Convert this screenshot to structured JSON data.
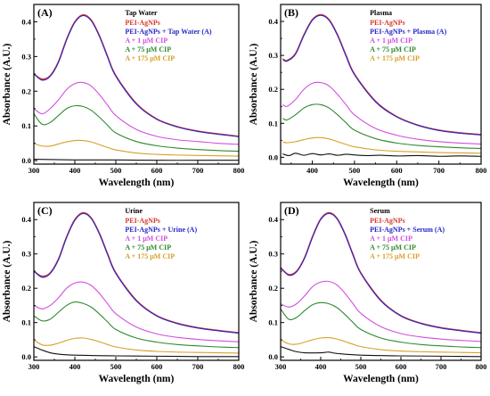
{
  "figure": {
    "background": "#ffffff"
  },
  "chart_data": [
    {
      "type": "line",
      "panel_label": "(A)",
      "title": "Tap Water",
      "xlabel": "Wavelength (nm)",
      "ylabel": "Absorbance (A.U.)",
      "xlim": [
        300,
        800
      ],
      "ylim": [
        -0.01,
        0.45
      ],
      "xticks": [
        300,
        400,
        500,
        600,
        700,
        800
      ],
      "yticks": [
        0.0,
        0.1,
        0.2,
        0.3,
        0.4
      ],
      "legend_position": "top-right",
      "series": [
        {
          "name": "PEI-AgNPs",
          "color": "#d93b2b",
          "x": [
            300,
            320,
            340,
            360,
            380,
            400,
            420,
            440,
            460,
            480,
            500,
            550,
            600,
            650,
            700,
            750,
            800
          ],
          "y": [
            0.25,
            0.235,
            0.245,
            0.285,
            0.35,
            0.4,
            0.42,
            0.405,
            0.36,
            0.3,
            0.245,
            0.165,
            0.12,
            0.098,
            0.085,
            0.077,
            0.07
          ]
        },
        {
          "name": "PEI-AgNPs + Tap Water (A)",
          "color": "#2828c8",
          "x": [
            300,
            320,
            340,
            360,
            380,
            400,
            420,
            440,
            460,
            480,
            500,
            550,
            600,
            650,
            700,
            750,
            800
          ],
          "y": [
            0.25,
            0.232,
            0.243,
            0.283,
            0.348,
            0.398,
            0.418,
            0.403,
            0.358,
            0.298,
            0.243,
            0.163,
            0.119,
            0.097,
            0.084,
            0.076,
            0.069
          ]
        },
        {
          "name": "A + 1 μM CIP",
          "color": "#d24fe0",
          "x": [
            300,
            320,
            340,
            360,
            380,
            400,
            420,
            440,
            460,
            480,
            500,
            550,
            600,
            650,
            700,
            750,
            800
          ],
          "y": [
            0.15,
            0.135,
            0.15,
            0.175,
            0.205,
            0.222,
            0.225,
            0.215,
            0.19,
            0.16,
            0.13,
            0.09,
            0.07,
            0.06,
            0.055,
            0.05,
            0.047
          ]
        },
        {
          "name": "A + 75 μM CIP",
          "color": "#2f8a2f",
          "x": [
            300,
            320,
            340,
            360,
            380,
            400,
            420,
            440,
            460,
            480,
            500,
            550,
            600,
            650,
            700,
            750,
            800
          ],
          "y": [
            0.135,
            0.105,
            0.11,
            0.13,
            0.15,
            0.158,
            0.156,
            0.145,
            0.125,
            0.102,
            0.08,
            0.055,
            0.043,
            0.036,
            0.032,
            0.029,
            0.027
          ]
        },
        {
          "name": "A + 175 μM CIP",
          "color": "#d6a12a",
          "x": [
            300,
            320,
            340,
            360,
            380,
            400,
            420,
            440,
            460,
            480,
            500,
            550,
            600,
            650,
            700,
            750,
            800
          ],
          "y": [
            0.05,
            0.042,
            0.042,
            0.048,
            0.054,
            0.058,
            0.058,
            0.054,
            0.046,
            0.038,
            0.031,
            0.022,
            0.018,
            0.016,
            0.015,
            0.014,
            0.013
          ]
        },
        {
          "name": "",
          "color": "#111111",
          "x": [
            300,
            350,
            400,
            500,
            600,
            700,
            800
          ],
          "y": [
            0.004,
            0.003,
            0.002,
            0.002,
            0.001,
            0.001,
            0.001
          ]
        }
      ]
    },
    {
      "type": "line",
      "panel_label": "(B)",
      "title": "Plasma",
      "xlabel": "Wavelength (nm)",
      "ylabel": "Absorbance (A.U.)",
      "xlim": [
        325,
        800
      ],
      "ylim": [
        -0.02,
        0.45
      ],
      "xticks": [
        400,
        500,
        600,
        700,
        800
      ],
      "yticks": [
        0.0,
        0.1,
        0.2,
        0.3,
        0.4
      ],
      "legend_position": "top-right",
      "series": [
        {
          "name": "PEI-AgNPs",
          "color": "#d93b2b",
          "x": [
            330,
            340,
            360,
            380,
            400,
            420,
            440,
            460,
            480,
            500,
            550,
            600,
            650,
            700,
            750,
            800
          ],
          "y": [
            0.29,
            0.285,
            0.305,
            0.36,
            0.405,
            0.42,
            0.405,
            0.36,
            0.3,
            0.245,
            0.165,
            0.12,
            0.095,
            0.08,
            0.072,
            0.067
          ]
        },
        {
          "name": "PEI-AgNPs + Plasma (A)",
          "color": "#2828c8",
          "x": [
            330,
            340,
            360,
            380,
            400,
            420,
            440,
            460,
            480,
            500,
            550,
            600,
            650,
            700,
            750,
            800
          ],
          "y": [
            0.288,
            0.283,
            0.303,
            0.358,
            0.403,
            0.418,
            0.403,
            0.358,
            0.298,
            0.243,
            0.163,
            0.119,
            0.094,
            0.079,
            0.071,
            0.066
          ]
        },
        {
          "name": "A + 1 μM CIP",
          "color": "#d24fe0",
          "x": [
            330,
            340,
            360,
            380,
            400,
            420,
            440,
            460,
            480,
            500,
            550,
            600,
            650,
            700,
            750,
            800
          ],
          "y": [
            0.155,
            0.15,
            0.17,
            0.2,
            0.218,
            0.22,
            0.21,
            0.185,
            0.155,
            0.125,
            0.085,
            0.065,
            0.053,
            0.046,
            0.042,
            0.039
          ]
        },
        {
          "name": "A + 75 μM CIP",
          "color": "#2f8a2f",
          "x": [
            330,
            340,
            360,
            380,
            400,
            420,
            440,
            460,
            480,
            500,
            550,
            600,
            650,
            700,
            750,
            800
          ],
          "y": [
            0.115,
            0.11,
            0.125,
            0.145,
            0.155,
            0.155,
            0.145,
            0.125,
            0.102,
            0.08,
            0.055,
            0.042,
            0.035,
            0.031,
            0.028,
            0.026
          ]
        },
        {
          "name": "A + 175 μM CIP",
          "color": "#d6a12a",
          "x": [
            330,
            340,
            360,
            380,
            400,
            420,
            440,
            460,
            480,
            500,
            550,
            600,
            650,
            700,
            750,
            800
          ],
          "y": [
            0.045,
            0.043,
            0.046,
            0.052,
            0.057,
            0.058,
            0.054,
            0.046,
            0.038,
            0.031,
            0.022,
            0.018,
            0.016,
            0.014,
            0.013,
            0.012
          ]
        },
        {
          "name": "",
          "color": "#111111",
          "x": [
            330,
            345,
            360,
            380,
            400,
            420,
            440,
            460,
            480,
            500,
            530,
            560,
            600,
            650,
            700,
            750,
            800
          ],
          "y": [
            0.01,
            0.005,
            0.012,
            0.006,
            0.011,
            0.007,
            0.01,
            0.006,
            0.009,
            0.007,
            0.005,
            0.006,
            0.004,
            0.005,
            0.003,
            0.004,
            0.003
          ]
        }
      ]
    },
    {
      "type": "line",
      "panel_label": "(C)",
      "title": "Urine",
      "xlabel": "Wavelength (nm)",
      "ylabel": "Absorbance (A.U.)",
      "xlim": [
        300,
        800
      ],
      "ylim": [
        -0.01,
        0.45
      ],
      "xticks": [
        300,
        400,
        500,
        600,
        700,
        800
      ],
      "yticks": [
        0.0,
        0.1,
        0.2,
        0.3,
        0.4
      ],
      "legend_position": "top-right",
      "series": [
        {
          "name": "PEI-AgNPs",
          "color": "#d93b2b",
          "x": [
            300,
            320,
            340,
            360,
            380,
            400,
            420,
            440,
            460,
            480,
            500,
            550,
            600,
            650,
            700,
            750,
            800
          ],
          "y": [
            0.25,
            0.235,
            0.245,
            0.285,
            0.35,
            0.4,
            0.42,
            0.405,
            0.36,
            0.3,
            0.245,
            0.165,
            0.12,
            0.098,
            0.085,
            0.077,
            0.07
          ]
        },
        {
          "name": "PEI-AgNPs + Urine (A)",
          "color": "#2828c8",
          "x": [
            300,
            320,
            340,
            360,
            380,
            400,
            420,
            440,
            460,
            480,
            500,
            550,
            600,
            650,
            700,
            750,
            800
          ],
          "y": [
            0.25,
            0.232,
            0.243,
            0.283,
            0.348,
            0.398,
            0.418,
            0.403,
            0.358,
            0.298,
            0.243,
            0.163,
            0.119,
            0.097,
            0.084,
            0.076,
            0.069
          ]
        },
        {
          "name": "A + 1 μM CIP",
          "color": "#d24fe0",
          "x": [
            300,
            320,
            340,
            360,
            380,
            400,
            420,
            440,
            460,
            480,
            500,
            550,
            600,
            650,
            700,
            750,
            800
          ],
          "y": [
            0.15,
            0.14,
            0.15,
            0.172,
            0.2,
            0.215,
            0.218,
            0.208,
            0.185,
            0.155,
            0.126,
            0.087,
            0.067,
            0.057,
            0.051,
            0.047,
            0.044
          ]
        },
        {
          "name": "A + 75 μM CIP",
          "color": "#2f8a2f",
          "x": [
            300,
            320,
            340,
            360,
            380,
            400,
            420,
            440,
            460,
            480,
            500,
            550,
            600,
            650,
            700,
            750,
            800
          ],
          "y": [
            0.12,
            0.105,
            0.11,
            0.13,
            0.15,
            0.16,
            0.156,
            0.145,
            0.125,
            0.102,
            0.08,
            0.055,
            0.043,
            0.036,
            0.032,
            0.029,
            0.027
          ]
        },
        {
          "name": "A + 175 μM CIP",
          "color": "#d6a12a",
          "x": [
            300,
            320,
            340,
            360,
            380,
            400,
            420,
            440,
            460,
            480,
            500,
            550,
            600,
            650,
            700,
            750,
            800
          ],
          "y": [
            0.05,
            0.035,
            0.034,
            0.04,
            0.048,
            0.054,
            0.055,
            0.051,
            0.044,
            0.036,
            0.029,
            0.02,
            0.016,
            0.014,
            0.013,
            0.012,
            0.011
          ]
        },
        {
          "name": "",
          "color": "#111111",
          "x": [
            300,
            320,
            340,
            360,
            400,
            500,
            600,
            700,
            800
          ],
          "y": [
            0.03,
            0.02,
            0.012,
            0.008,
            0.005,
            0.003,
            0.002,
            0.001,
            0.001
          ]
        }
      ]
    },
    {
      "type": "line",
      "panel_label": "(D)",
      "title": "Serum",
      "xlabel": "Wavelength (nm)",
      "ylabel": "Absorbance (A.U.)",
      "xlim": [
        300,
        800
      ],
      "ylim": [
        -0.01,
        0.45
      ],
      "xticks": [
        300,
        400,
        500,
        600,
        700,
        800
      ],
      "yticks": [
        0.0,
        0.1,
        0.2,
        0.3,
        0.4
      ],
      "legend_position": "top-right",
      "series": [
        {
          "name": "PEI-AgNPs",
          "color": "#d93b2b",
          "x": [
            300,
            320,
            340,
            360,
            380,
            400,
            420,
            440,
            460,
            480,
            500,
            550,
            600,
            650,
            700,
            750,
            800
          ],
          "y": [
            0.26,
            0.24,
            0.25,
            0.29,
            0.352,
            0.402,
            0.42,
            0.405,
            0.36,
            0.3,
            0.245,
            0.165,
            0.12,
            0.098,
            0.085,
            0.077,
            0.07
          ]
        },
        {
          "name": "PEI-AgNPs + Serum (A)",
          "color": "#2828c8",
          "x": [
            300,
            320,
            340,
            360,
            380,
            400,
            420,
            440,
            460,
            480,
            500,
            550,
            600,
            650,
            700,
            750,
            800
          ],
          "y": [
            0.26,
            0.238,
            0.248,
            0.288,
            0.35,
            0.4,
            0.418,
            0.403,
            0.358,
            0.298,
            0.243,
            0.163,
            0.119,
            0.097,
            0.084,
            0.076,
            0.069
          ]
        },
        {
          "name": "A + 1 μM CIP",
          "color": "#d24fe0",
          "x": [
            300,
            320,
            340,
            360,
            380,
            400,
            420,
            440,
            460,
            480,
            500,
            550,
            600,
            650,
            700,
            750,
            800
          ],
          "y": [
            0.155,
            0.145,
            0.155,
            0.178,
            0.205,
            0.218,
            0.22,
            0.21,
            0.186,
            0.156,
            0.127,
            0.088,
            0.068,
            0.058,
            0.052,
            0.048,
            0.045
          ]
        },
        {
          "name": "A + 75 μM CIP",
          "color": "#2f8a2f",
          "x": [
            300,
            320,
            340,
            360,
            380,
            400,
            420,
            440,
            460,
            480,
            500,
            550,
            600,
            650,
            700,
            750,
            800
          ],
          "y": [
            0.14,
            0.11,
            0.115,
            0.135,
            0.152,
            0.158,
            0.155,
            0.144,
            0.124,
            0.101,
            0.08,
            0.055,
            0.043,
            0.036,
            0.032,
            0.029,
            0.027
          ]
        },
        {
          "name": "A + 175 μM CIP",
          "color": "#d6a12a",
          "x": [
            300,
            320,
            340,
            360,
            380,
            400,
            420,
            440,
            460,
            480,
            500,
            550,
            600,
            650,
            700,
            750,
            800
          ],
          "y": [
            0.05,
            0.038,
            0.037,
            0.043,
            0.05,
            0.055,
            0.056,
            0.052,
            0.045,
            0.037,
            0.03,
            0.021,
            0.017,
            0.015,
            0.014,
            0.013,
            0.012
          ]
        },
        {
          "name": "",
          "color": "#111111",
          "x": [
            300,
            320,
            340,
            360,
            400,
            420,
            440,
            500,
            600,
            700,
            800
          ],
          "y": [
            0.03,
            0.022,
            0.015,
            0.012,
            0.012,
            0.014,
            0.01,
            0.005,
            0.003,
            0.002,
            0.001
          ]
        }
      ]
    }
  ]
}
